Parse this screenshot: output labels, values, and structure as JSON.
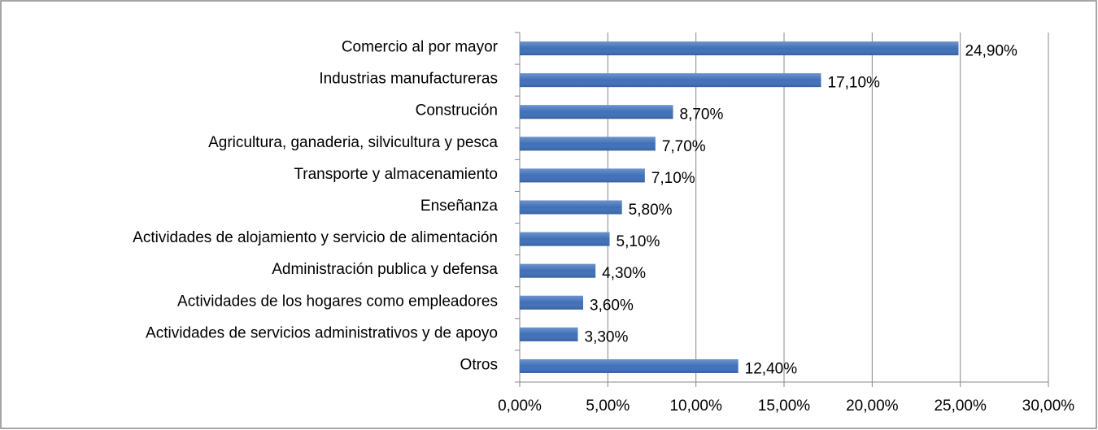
{
  "chart_data": {
    "type": "barh",
    "categories": [
      "Comercio al por mayor",
      "Industrias manufactureras",
      "Construción",
      "Agricultura, ganaderia, silvicultura y pesca",
      "Transporte y almacenamiento",
      "Enseñanza",
      "Actividades de alojamiento y servicio de alimentación",
      "Administración publica y defensa",
      "Actividades de los hogares como empleadores",
      "Actividades de servicios administrativos y de apoyo",
      "Otros"
    ],
    "values": [
      24.9,
      17.1,
      8.7,
      7.7,
      7.1,
      5.8,
      5.1,
      4.3,
      3.6,
      3.3,
      12.4
    ],
    "value_labels": [
      "24,90%",
      "17,10%",
      "8,70%",
      "7,70%",
      "7,10%",
      "5,80%",
      "5,10%",
      "4,30%",
      "3,60%",
      "3,30%",
      "12,40%"
    ],
    "color": "#3f70b8",
    "xlim": [
      0,
      30
    ],
    "xticks": [
      {
        "value": 0,
        "label": "0,00%"
      },
      {
        "value": 5,
        "label": "5,00%"
      },
      {
        "value": 10,
        "label": "10,00%"
      },
      {
        "value": 15,
        "label": "15,00%"
      },
      {
        "value": 20,
        "label": "20,00%"
      },
      {
        "value": 25,
        "label": "25,00%"
      },
      {
        "value": 30,
        "label": "30,00%"
      }
    ],
    "grid": true
  }
}
